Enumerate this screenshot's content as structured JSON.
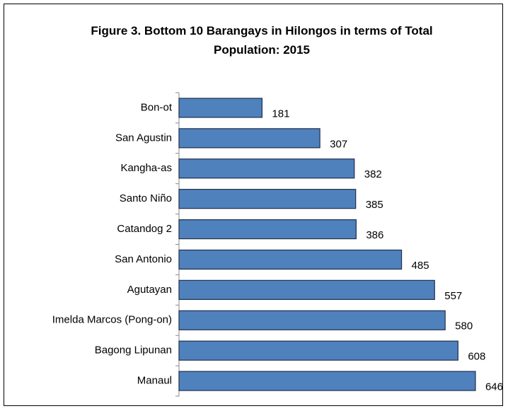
{
  "chart_data": {
    "type": "barh",
    "title": "Figure 3. Bottom 10 Barangays in Hilongos in terms of Total Population: 2015",
    "categories": [
      "Bon-ot",
      "San Agustin",
      "Kangha-as",
      "Santo Niño",
      "Catandog 2",
      "San Antonio",
      "Agutayan",
      "Imelda Marcos (Pong-on)",
      "Bagong Lipunan",
      "Manaul"
    ],
    "values": [
      181,
      307,
      382,
      385,
      386,
      485,
      557,
      580,
      608,
      646
    ],
    "color": "#4f81bd",
    "xlim": [
      0,
      700
    ]
  }
}
